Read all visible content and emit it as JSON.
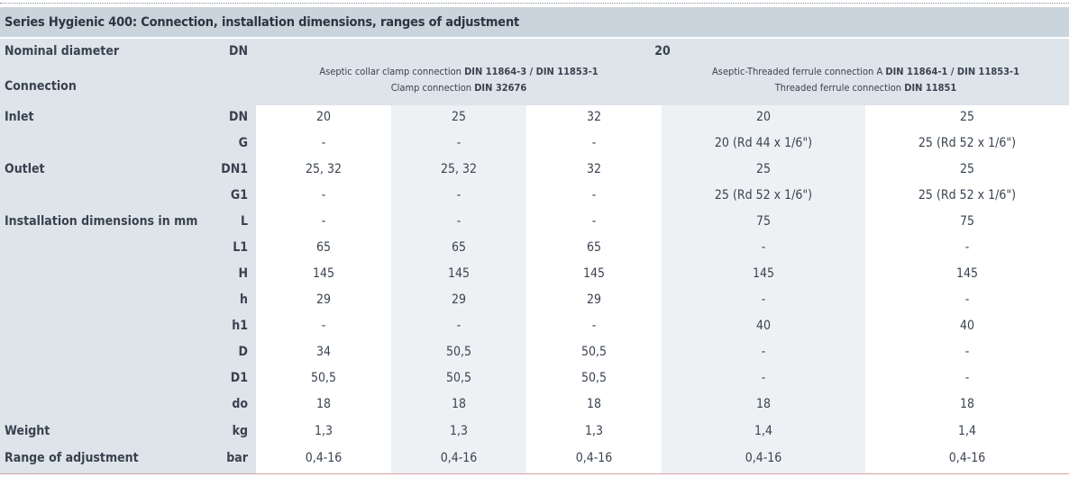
{
  "title": "Series Hygienic 400: Connection, installation dimensions, ranges of adjustment",
  "header": {
    "nominal_diameter_label": "Nominal diameter",
    "nominal_diameter_unit": "DN",
    "nominal_diameter_value": "20",
    "connection_label": "Connection",
    "group_a_line1_pre": "Aseptic collar clamp connection ",
    "group_a_line1_std": "DIN 11864-3 / DIN 11853-1",
    "group_a_line2_pre": "Clamp connection ",
    "group_a_line2_std": "DIN 32676",
    "group_b_line1_pre": "Aseptic-Threaded ferrule connection A ",
    "group_b_line1_std": "DIN 11864-1 / DIN 11853-1",
    "group_b_line2_pre": "Threaded ferrule connection  ",
    "group_b_line2_std": "DIN 11851"
  },
  "rows": [
    {
      "label": "Inlet",
      "unit": "DN",
      "values": [
        "20",
        "25",
        "32",
        "20",
        "25"
      ]
    },
    {
      "label": "",
      "unit": "G",
      "values": [
        "-",
        "-",
        "-",
        "20 (Rd 44 x 1/6\")",
        "25 (Rd 52 x 1/6\")"
      ]
    },
    {
      "label": "Outlet",
      "unit": "DN1",
      "values": [
        "25, 32",
        "25, 32",
        "32",
        "25",
        "25"
      ]
    },
    {
      "label": "",
      "unit": "G1",
      "values": [
        "-",
        "-",
        "-",
        "25 (Rd 52 x 1/6\")",
        "25 (Rd 52 x 1/6\")"
      ]
    },
    {
      "label": "Installation dimensions in mm",
      "unit": "L",
      "values": [
        "-",
        "-",
        "-",
        "75",
        "75"
      ]
    },
    {
      "label": "",
      "unit": "L1",
      "values": [
        "65",
        "65",
        "65",
        "-",
        "-"
      ]
    },
    {
      "label": "",
      "unit": "H",
      "values": [
        "145",
        "145",
        "145",
        "145",
        "145"
      ]
    },
    {
      "label": "",
      "unit": "h",
      "values": [
        "29",
        "29",
        "29",
        "-",
        "-"
      ]
    },
    {
      "label": "",
      "unit": "h1",
      "values": [
        "-",
        "-",
        "-",
        "40",
        "40"
      ]
    },
    {
      "label": "",
      "unit": "D",
      "values": [
        "34",
        "50,5",
        "50,5",
        "-",
        "-"
      ]
    },
    {
      "label": "",
      "unit": "D1",
      "values": [
        "50,5",
        "50,5",
        "50,5",
        "-",
        "-"
      ]
    },
    {
      "label": "",
      "unit": "do",
      "values": [
        "18",
        "18",
        "18",
        "18",
        "18"
      ]
    },
    {
      "label": "Weight",
      "unit": "kg",
      "values": [
        "1,3",
        "1,3",
        "1,3",
        "1,4",
        "1,4"
      ]
    },
    {
      "label": "Range of adjustment",
      "unit": "bar",
      "values": [
        "0,4-16",
        "0,4-16",
        "0,4-16",
        "0,4-16",
        "0,4-16"
      ]
    }
  ],
  "colors": {
    "title_bg": "#cad4dc",
    "header_bg": "#dde4ea",
    "label_col_bg": "#dde4ea",
    "shaded_col_bg": "#edf1f4",
    "white_col_bg": "#ffffff"
  }
}
